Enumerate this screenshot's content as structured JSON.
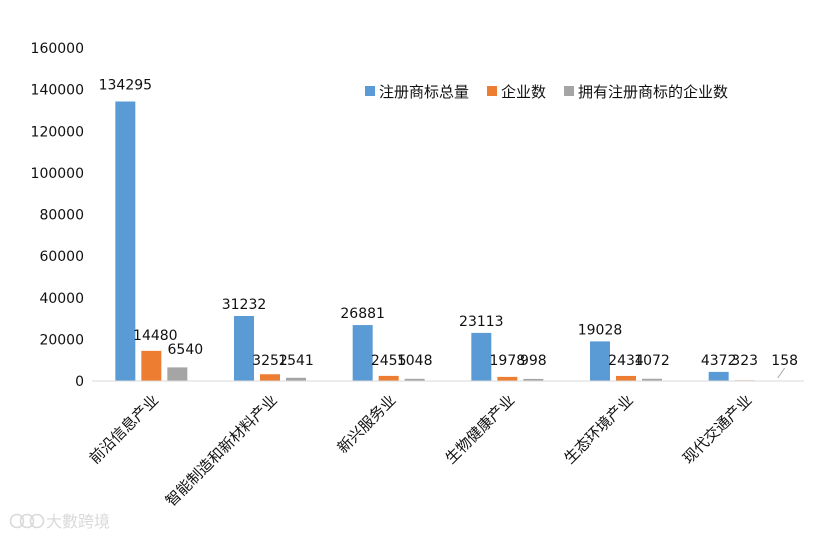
{
  "chart_data": {
    "type": "bar",
    "title": "",
    "xlabel": "",
    "ylabel": "",
    "ylim": [
      0,
      160000
    ],
    "yticks": [
      0,
      20000,
      40000,
      60000,
      80000,
      100000,
      120000,
      140000,
      160000
    ],
    "grid": false,
    "legend_position": "top-right",
    "categories": [
      "前沿信息产业",
      "智能制造和新材料产业",
      "新兴服务业",
      "生物健康产业",
      "生态环境产业",
      "现代交通产业"
    ],
    "series": [
      {
        "name": "注册商标总量",
        "color": "#5B9BD5",
        "values": [
          134295,
          31232,
          26881,
          23113,
          19028,
          4372
        ]
      },
      {
        "name": "企业数",
        "color": "#ED7D31",
        "values": [
          14480,
          3252,
          2455,
          1978,
          2434,
          323
        ]
      },
      {
        "name": "拥有注册商标的企业数",
        "color": "#A5A5A5",
        "values": [
          6540,
          1541,
          1048,
          998,
          1072,
          158
        ]
      }
    ]
  },
  "watermark": {
    "text": "大數跨境",
    "icon": "brand-logo-icon"
  }
}
